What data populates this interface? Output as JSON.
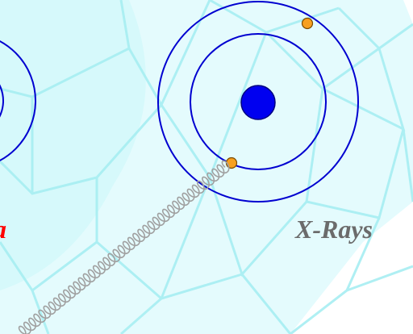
{
  "labels": {
    "right_label": "X-Rays",
    "left_label_fragment": "a"
  },
  "colors": {
    "background": "#ffffff",
    "wireframe_fill": "#d6f9fb",
    "wireframe_stroke": "#a7eef2",
    "orbit": "#0000d0",
    "nucleus": "#0000f0",
    "electron": "#f7a020",
    "electron_stroke": "#7a4a00",
    "photon_wave": "#a0a0a0",
    "right_label_color": "#6b6b6b",
    "left_label_color": "#ff0000"
  }
}
